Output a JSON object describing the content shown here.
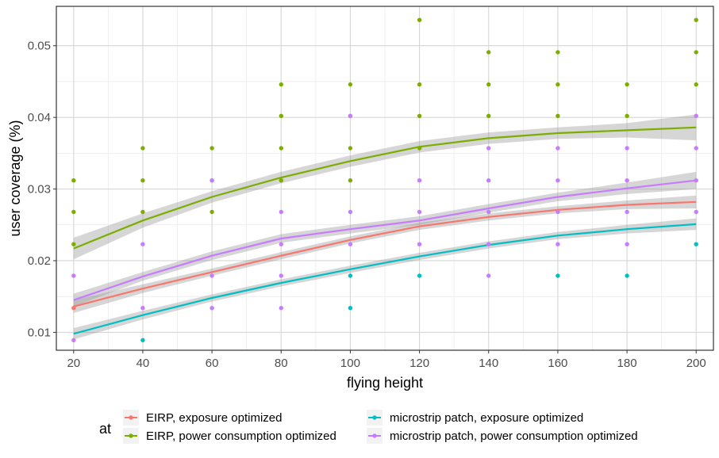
{
  "chart_data": {
    "type": "scatter",
    "xlabel": "flying height",
    "ylabel": "user coverage (%)",
    "xlim": [
      15,
      205
    ],
    "ylim": [
      0.0075,
      0.0555
    ],
    "x_ticks": [
      20,
      40,
      60,
      80,
      100,
      120,
      140,
      160,
      180,
      200
    ],
    "x_tick_labels": [
      "20",
      "40",
      "60",
      "80",
      "100",
      "120",
      "140",
      "160",
      "180",
      "200"
    ],
    "y_ticks": [
      0.01,
      0.02,
      0.03,
      0.04,
      0.05
    ],
    "y_tick_labels": [
      "0.01",
      "0.02",
      "0.03",
      "0.04",
      "0.05"
    ],
    "grid": true,
    "legend_title": "at",
    "legend_position": "bottom",
    "series": [
      {
        "name": "EIRP, exposure optimized",
        "color": "#F8766D",
        "points": [
          [
            20,
            0.0134
          ]
        ],
        "smooth": {
          "x": [
            20,
            40,
            60,
            80,
            100,
            120,
            140,
            160,
            180,
            200
          ],
          "y": [
            0.0136,
            0.0161,
            0.0184,
            0.0207,
            0.0229,
            0.0248,
            0.0261,
            0.0271,
            0.0278,
            0.0282
          ],
          "se": [
            0.0009,
            0.0006,
            0.0005,
            0.0005,
            0.0005,
            0.0005,
            0.0005,
            0.0005,
            0.0006,
            0.0009
          ]
        }
      },
      {
        "name": "EIRP, power consumption optimized",
        "color": "#7CAE00",
        "points": [
          [
            20,
            0.0312
          ],
          [
            20,
            0.0268
          ],
          [
            20,
            0.0223
          ],
          [
            40,
            0.0357
          ],
          [
            40,
            0.0312
          ],
          [
            40,
            0.0268
          ],
          [
            60,
            0.0357
          ],
          [
            60,
            0.0312
          ],
          [
            60,
            0.0268
          ],
          [
            80,
            0.0446
          ],
          [
            80,
            0.0402
          ],
          [
            80,
            0.0357
          ],
          [
            80,
            0.0312
          ],
          [
            100,
            0.0446
          ],
          [
            100,
            0.0402
          ],
          [
            100,
            0.0357
          ],
          [
            100,
            0.0312
          ],
          [
            120,
            0.0536
          ],
          [
            120,
            0.0446
          ],
          [
            120,
            0.0402
          ],
          [
            120,
            0.0357
          ],
          [
            140,
            0.0491
          ],
          [
            140,
            0.0446
          ],
          [
            140,
            0.0402
          ],
          [
            160,
            0.0491
          ],
          [
            160,
            0.0446
          ],
          [
            160,
            0.0402
          ],
          [
            180,
            0.0446
          ],
          [
            180,
            0.0402
          ],
          [
            200,
            0.0536
          ],
          [
            200,
            0.0491
          ],
          [
            200,
            0.0446
          ]
        ],
        "smooth": {
          "x": [
            20,
            40,
            60,
            80,
            100,
            120,
            140,
            160,
            180,
            200
          ],
          "y": [
            0.0217,
            0.0256,
            0.0289,
            0.0316,
            0.0339,
            0.0359,
            0.0371,
            0.0378,
            0.0382,
            0.0386
          ],
          "se": [
            0.0015,
            0.001,
            0.0008,
            0.0008,
            0.0008,
            0.0008,
            0.0008,
            0.0008,
            0.001,
            0.0018
          ]
        }
      },
      {
        "name": "microstrip patch, exposure optimized",
        "color": "#00BFC4",
        "points": [
          [
            40,
            0.0089
          ],
          [
            100,
            0.0134
          ],
          [
            100,
            0.0179
          ],
          [
            120,
            0.0179
          ],
          [
            160,
            0.0179
          ],
          [
            180,
            0.0179
          ],
          [
            200,
            0.0223
          ]
        ],
        "smooth": {
          "x": [
            20,
            40,
            60,
            80,
            100,
            120,
            140,
            160,
            180,
            200
          ],
          "y": [
            0.0098,
            0.0124,
            0.0148,
            0.0169,
            0.0188,
            0.0206,
            0.0222,
            0.0235,
            0.0244,
            0.0251
          ],
          "se": [
            0.0008,
            0.0006,
            0.0005,
            0.0005,
            0.0005,
            0.0005,
            0.0005,
            0.0005,
            0.0006,
            0.0008
          ]
        }
      },
      {
        "name": "microstrip patch, power consumption optimized",
        "color": "#C77CFF",
        "points": [
          [
            20,
            0.0179
          ],
          [
            20,
            0.0089
          ],
          [
            40,
            0.0223
          ],
          [
            40,
            0.0134
          ],
          [
            60,
            0.0312
          ],
          [
            60,
            0.0179
          ],
          [
            60,
            0.0134
          ],
          [
            80,
            0.0268
          ],
          [
            80,
            0.0223
          ],
          [
            80,
            0.0179
          ],
          [
            80,
            0.0134
          ],
          [
            100,
            0.0402
          ],
          [
            100,
            0.0268
          ],
          [
            100,
            0.0223
          ],
          [
            120,
            0.0312
          ],
          [
            120,
            0.0268
          ],
          [
            120,
            0.0223
          ],
          [
            140,
            0.0357
          ],
          [
            140,
            0.0312
          ],
          [
            140,
            0.0268
          ],
          [
            140,
            0.0223
          ],
          [
            140,
            0.0179
          ],
          [
            160,
            0.0357
          ],
          [
            160,
            0.0312
          ],
          [
            160,
            0.0268
          ],
          [
            160,
            0.0223
          ],
          [
            180,
            0.0357
          ],
          [
            180,
            0.0312
          ],
          [
            180,
            0.0268
          ],
          [
            180,
            0.0223
          ],
          [
            200,
            0.0402
          ],
          [
            200,
            0.0357
          ],
          [
            200,
            0.0312
          ],
          [
            200,
            0.0268
          ]
        ],
        "smooth": {
          "x": [
            20,
            40,
            60,
            80,
            100,
            120,
            140,
            160,
            180,
            200
          ],
          "y": [
            0.0145,
            0.0178,
            0.0207,
            0.0231,
            0.0244,
            0.0256,
            0.0273,
            0.0289,
            0.0301,
            0.0312
          ],
          "se": [
            0.0009,
            0.0006,
            0.0006,
            0.0006,
            0.0006,
            0.0006,
            0.0006,
            0.0006,
            0.0008,
            0.0012
          ]
        }
      }
    ]
  }
}
